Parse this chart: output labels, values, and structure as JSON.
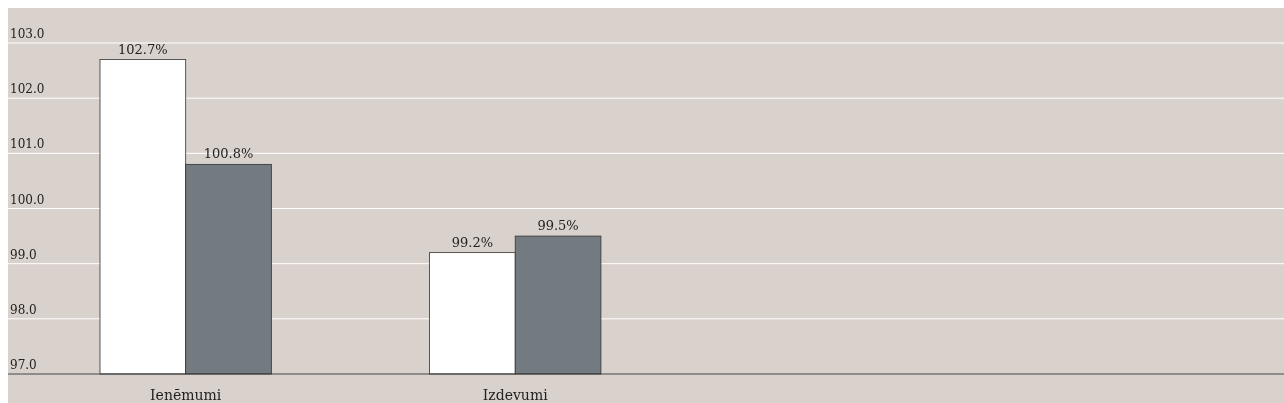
{
  "chart_data": {
    "type": "bar",
    "categories": [
      "Ienēmumi",
      "Izdevumi",
      null,
      null
    ],
    "series": [
      {
        "color": "#ffffff",
        "values": [
          102.7,
          99.2,
          null,
          null
        ],
        "value_labels": [
          "102.7%",
          "99.2%",
          null,
          null
        ]
      },
      {
        "color": "#737a80",
        "values": [
          100.8,
          99.5,
          null,
          null
        ],
        "value_labels": [
          "100.8%",
          "99.5%",
          null,
          null
        ]
      }
    ],
    "ylim": [
      97,
      103
    ],
    "yticks": [
      {
        "value": 97,
        "label": "97.0"
      },
      {
        "value": 98,
        "label": "98.0"
      },
      {
        "value": 99,
        "label": "99.0"
      },
      {
        "value": 100,
        "label": "100.0"
      },
      {
        "value": 101,
        "label": "101.0"
      },
      {
        "value": 102,
        "label": "102.0"
      },
      {
        "value": 103,
        "label": "103.0"
      }
    ],
    "grid": "y"
  }
}
